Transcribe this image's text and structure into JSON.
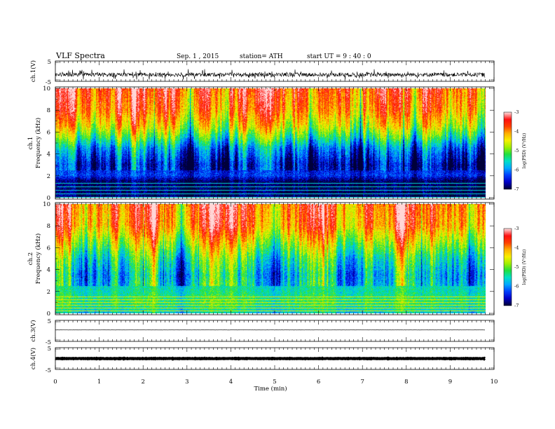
{
  "header": {
    "title": "VLF Spectra",
    "date": "Sep. 1 , 2015",
    "station": "station= ATH",
    "start": "start  UT =   9 : 40 : 0"
  },
  "chart_data": [
    {
      "type": "line",
      "panel": "ch1-waveform",
      "ylabel": "ch.1(V)",
      "ylim": [
        -5,
        5
      ],
      "yticks": [
        "5",
        "-5"
      ],
      "x": [
        0,
        9.8
      ],
      "baseline": -2.0,
      "noise_amplitude": 2.2
    },
    {
      "type": "heatmap",
      "panel": "ch1-spectrogram",
      "ylabel_top": "ch.1",
      "ylabel": "Frequency  (kHz)",
      "ylim": [
        0,
        10
      ],
      "yticks": [
        "0",
        "2",
        "4",
        "6",
        "8",
        "10"
      ],
      "xlim": [
        0,
        9.8
      ],
      "colorbar": {
        "label": "log(PSD) (V²/Hz)",
        "range": [
          -7,
          -3
        ],
        "ticks": [
          "-3",
          "-4",
          "-5",
          "-6",
          "-7"
        ]
      },
      "level_profile": [
        {
          "f": 0.0,
          "log_psd": -6.9
        },
        {
          "f": 1.5,
          "log_psd": -6.9
        },
        {
          "f": 2.0,
          "log_psd": -6.3
        },
        {
          "f": 3.0,
          "log_psd": -6.5
        },
        {
          "f": 4.5,
          "log_psd": -5.9
        },
        {
          "f": 5.5,
          "log_psd": -5.1
        },
        {
          "f": 6.5,
          "log_psd": -4.4
        },
        {
          "f": 8.0,
          "log_psd": -3.8
        },
        {
          "f": 10.0,
          "log_psd": -3.5
        }
      ]
    },
    {
      "type": "heatmap",
      "panel": "ch2-spectrogram",
      "ylabel_top": "ch.2",
      "ylabel": "Frequency  (kHz)",
      "ylim": [
        0,
        10
      ],
      "yticks": [
        "0",
        "2",
        "4",
        "6",
        "8",
        "10"
      ],
      "xlim": [
        0,
        9.8
      ],
      "colorbar": {
        "label": "log(PSD) (V²/Hz)",
        "range": [
          -7,
          -3
        ],
        "ticks": [
          "-3",
          "-4",
          "-5",
          "-6",
          "-7"
        ]
      },
      "level_profile": [
        {
          "f": 0.0,
          "log_psd": -5.6
        },
        {
          "f": 1.0,
          "log_psd": -5.2
        },
        {
          "f": 2.0,
          "log_psd": -5.4
        },
        {
          "f": 3.5,
          "log_psd": -5.6
        },
        {
          "f": 5.0,
          "log_psd": -5.2
        },
        {
          "f": 6.5,
          "log_psd": -4.5
        },
        {
          "f": 8.0,
          "log_psd": -3.8
        },
        {
          "f": 10.0,
          "log_psd": -3.6
        }
      ]
    },
    {
      "type": "line",
      "panel": "ch3-waveform",
      "ylabel": "ch.3(V)",
      "ylim": [
        -5,
        5
      ],
      "yticks": [
        "5",
        "-5"
      ],
      "x": [
        0,
        9.8
      ],
      "baseline": 0.5,
      "noise_amplitude": 0.08
    },
    {
      "type": "line",
      "panel": "ch4-waveform",
      "ylabel": "ch.4(V)",
      "ylim": [
        -5,
        5
      ],
      "yticks": [
        "5",
        "-5"
      ],
      "x": [
        0,
        9.8
      ],
      "baseline": 0.0,
      "noise_amplitude": 0.2,
      "xlabel": "Time  (min)",
      "xlim": [
        0,
        10
      ],
      "xticks": [
        "0",
        "1",
        "2",
        "3",
        "4",
        "5",
        "6",
        "7",
        "8",
        "9",
        "10"
      ]
    }
  ],
  "colors": {
    "colormap": [
      "#00003a",
      "#0000c8",
      "#0040ff",
      "#00a8ff",
      "#00e0c8",
      "#20e040",
      "#a0f000",
      "#f8f000",
      "#ffb000",
      "#ff4000",
      "#ff1010",
      "#ffd8d8"
    ]
  }
}
